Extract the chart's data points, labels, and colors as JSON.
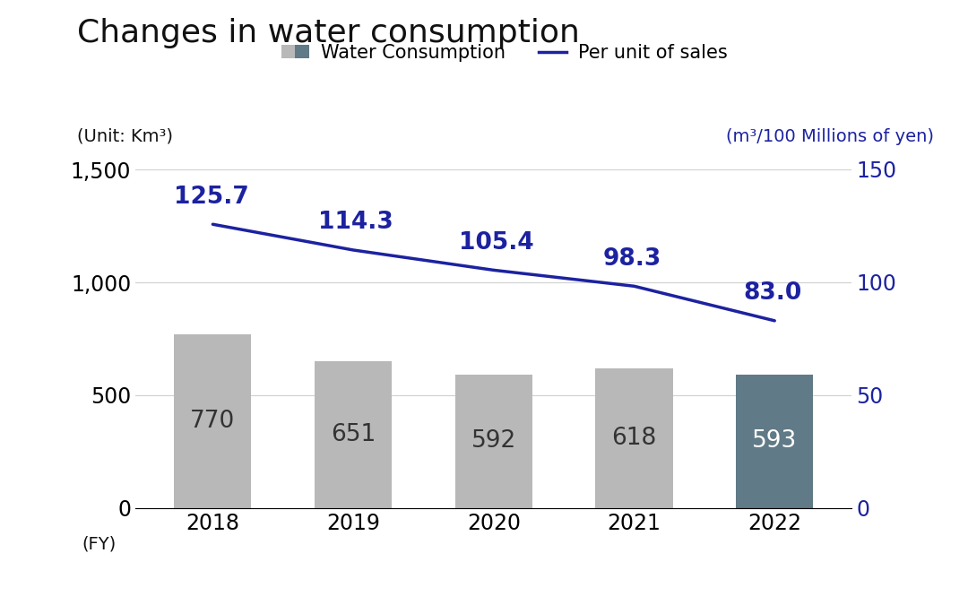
{
  "title": "Changes in water consumption",
  "years": [
    2018,
    2019,
    2020,
    2021,
    2022
  ],
  "bar_values": [
    770,
    651,
    592,
    618,
    593
  ],
  "bar_colors": [
    "#b8b8b8",
    "#b8b8b8",
    "#b8b8b8",
    "#b8b8b8",
    "#607a87"
  ],
  "line_values": [
    125.7,
    114.3,
    105.4,
    98.3,
    83.0
  ],
  "left_unit_label": "(Unit: Km³)",
  "right_unit_label": "(m³/100 Millions of yen)",
  "xlabel": "(FY)",
  "left_ylim": [
    0,
    1500
  ],
  "right_ylim": [
    0,
    150
  ],
  "left_yticks": [
    0,
    500,
    1000,
    1500
  ],
  "right_yticks": [
    0,
    50,
    100,
    150
  ],
  "left_ytick_labels": [
    "0",
    "500",
    "1,000",
    "1,500"
  ],
  "right_ytick_labels": [
    "0",
    "50",
    "100",
    "150"
  ],
  "line_color": "#1c22a0",
  "line_label": "Per unit of sales",
  "bar_label": "Water Consumption",
  "background_color": "#ffffff",
  "bar_label_color_dark": "#333333",
  "bar_label_color_light": "#ffffff",
  "title_fontsize": 26,
  "unit_label_fontsize": 14,
  "tick_fontsize": 17,
  "annotation_fontsize": 19,
  "legend_fontsize": 15,
  "right_label_color": "#1c22a0",
  "grid_color": "#d0d0d0",
  "bar_light_color": "#b8b8b8",
  "bar_dark_color": "#607a87"
}
